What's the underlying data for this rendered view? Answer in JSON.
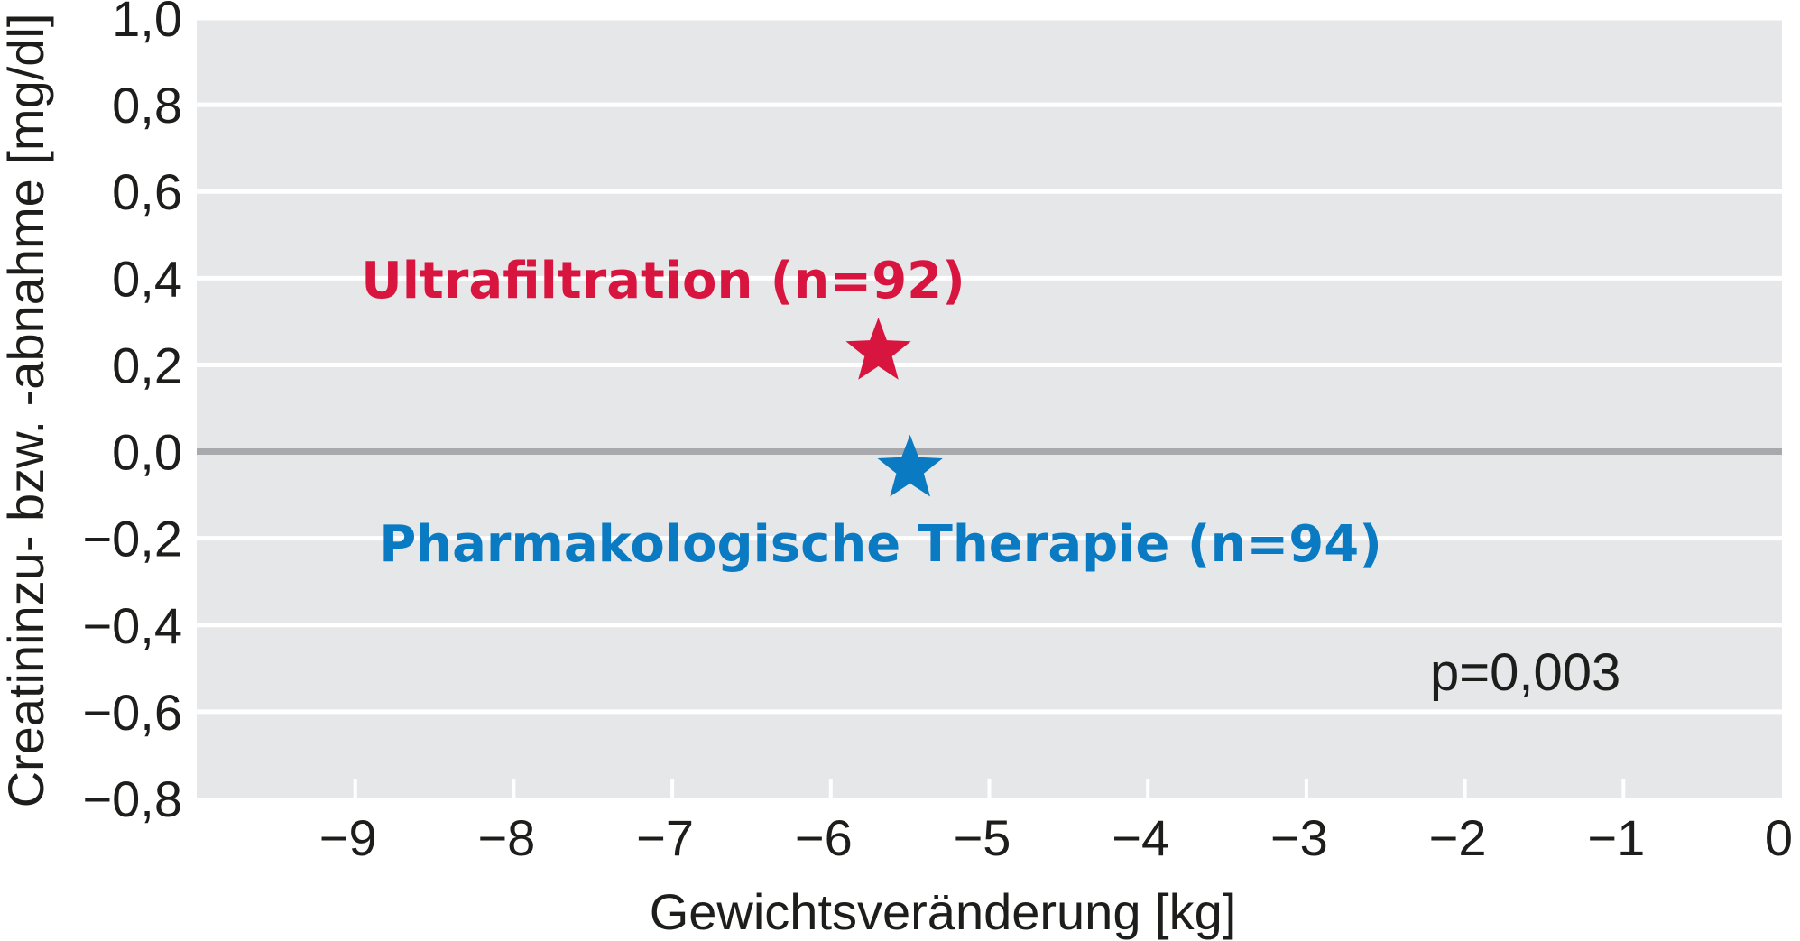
{
  "chart_data": {
    "type": "scatter",
    "title": "",
    "xlabel": "Gewichtsveränderung [kg]",
    "ylabel": "Creatininzu- bzw. -abnahme [mg/dl]",
    "xlim": [
      -10,
      0
    ],
    "ylim": [
      -0.8,
      1.0
    ],
    "x_ticks": [
      -9,
      -8,
      -7,
      -6,
      -5,
      -4,
      -3,
      -2,
      -1,
      0
    ],
    "x_tick_labels": [
      "−9",
      "−8",
      "−7",
      "−6",
      "−5",
      "−4",
      "−3",
      "−2",
      "−1",
      "0"
    ],
    "y_ticks": [
      1.0,
      0.8,
      0.6,
      0.4,
      0.2,
      0.0,
      -0.2,
      -0.4,
      -0.6,
      -0.8
    ],
    "y_tick_labels": [
      "1,0",
      "0,8",
      "0,6",
      "0,4",
      "0,2",
      "0,0",
      "−0,2",
      "−0,4",
      "−0,6",
      "−0,8"
    ],
    "grid": true,
    "series": [
      {
        "name": "Ultrafiltration (n=92)",
        "x": -5.7,
        "y": 0.23,
        "color": "#d7153f",
        "marker": "star"
      },
      {
        "name": "Pharmakologische Therapie (n=94)",
        "x": -5.5,
        "y": -0.04,
        "color": "#0a7ac2",
        "marker": "star"
      }
    ],
    "annotations": [
      {
        "text": "p=0,003"
      }
    ],
    "colors": {
      "plot_bg": "#e6e7e9",
      "grid": "#ffffff",
      "zero_line": "#a7a9ac"
    }
  }
}
